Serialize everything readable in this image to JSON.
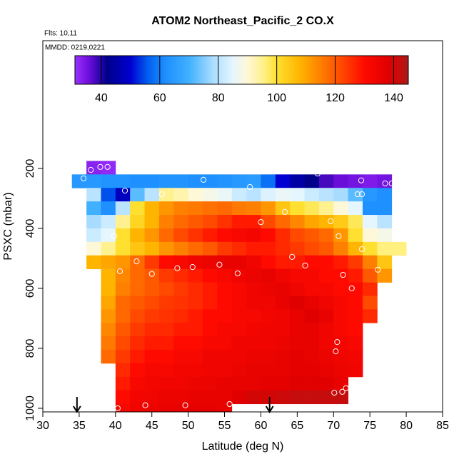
{
  "chart_data": {
    "type": "heatmap",
    "title": "ATOM2 Northeast_Pacific_2 CO.X",
    "subtitle": "Flts: 10,11",
    "annotation": "MMDD: 0219,0221",
    "xlabel": "Latitude (deg N)",
    "ylabel": "PSXC (mbar)",
    "xlim": [
      30,
      85
    ],
    "xticks": [
      30,
      35,
      40,
      45,
      50,
      55,
      60,
      65,
      70,
      75,
      80,
      85
    ],
    "ylim": [
      1012,
      -226
    ],
    "yticks": [
      200,
      400,
      600,
      800,
      1000
    ],
    "clim": [
      31,
      145
    ],
    "cticks": [
      40,
      60,
      80,
      100,
      120,
      140
    ],
    "colorscale": [
      [
        31,
        "#9b30ff"
      ],
      [
        36,
        "#6a0dd8"
      ],
      [
        42,
        "#00008b"
      ],
      [
        50,
        "#0000d0"
      ],
      [
        56,
        "#0060f0"
      ],
      [
        62,
        "#1e90ff"
      ],
      [
        70,
        "#40b0ff"
      ],
      [
        78,
        "#a8dcff"
      ],
      [
        85,
        "#e6f6ff"
      ],
      [
        90,
        "#fff8d8"
      ],
      [
        96,
        "#fff080"
      ],
      [
        100,
        "#ffe030"
      ],
      [
        108,
        "#ffb400"
      ],
      [
        116,
        "#ff7800"
      ],
      [
        124,
        "#ff3a00"
      ],
      [
        130,
        "#ff0a00"
      ],
      [
        138,
        "#e00000"
      ],
      [
        143,
        "#c01010"
      ],
      [
        145,
        "#a02020"
      ]
    ],
    "x": [
      34,
      36,
      38,
      40,
      42,
      44,
      46,
      48,
      50,
      52,
      54,
      56,
      58,
      60,
      62,
      64,
      66,
      68,
      70,
      72,
      74,
      76,
      78,
      80
    ],
    "y": [
      175,
      220,
      265,
      310,
      355,
      400,
      445,
      490,
      535,
      580,
      625,
      670,
      715,
      760,
      805,
      850,
      895,
      940,
      985,
      1012
    ],
    "values": [
      [
        null,
        33,
        32,
        null,
        null,
        null,
        null,
        null,
        null,
        null,
        null,
        null,
        null,
        null,
        null,
        null,
        null,
        null,
        null,
        null,
        null,
        null,
        null
      ],
      [
        64,
        64,
        63,
        63,
        62,
        62,
        63,
        63,
        62,
        62,
        63,
        64,
        65,
        58,
        50,
        45,
        42,
        38,
        36,
        35,
        34,
        35,
        null
      ],
      [
        null,
        80,
        55,
        48,
        72,
        80,
        95,
        93,
        90,
        88,
        86,
        82,
        80,
        84,
        86,
        85,
        82,
        80,
        78,
        72,
        64,
        62,
        null
      ],
      [
        null,
        70,
        62,
        80,
        100,
        108,
        112,
        115,
        116,
        117,
        118,
        116,
        115,
        112,
        105,
        100,
        98,
        95,
        90,
        85,
        62,
        62,
        null
      ],
      [
        null,
        78,
        82,
        95,
        102,
        108,
        115,
        118,
        120,
        122,
        125,
        128,
        128,
        122,
        118,
        114,
        110,
        108,
        104,
        98,
        85,
        80,
        null
      ],
      [
        null,
        82,
        85,
        100,
        108,
        112,
        118,
        122,
        125,
        128,
        130,
        132,
        133,
        130,
        126,
        122,
        120,
        118,
        112,
        100,
        90,
        88,
        null
      ],
      [
        null,
        90,
        95,
        100,
        105,
        108,
        112,
        115,
        118,
        120,
        124,
        126,
        128,
        128,
        126,
        124,
        122,
        120,
        115,
        108,
        100,
        96,
        96
      ],
      [
        null,
        108,
        110,
        112,
        118,
        124,
        130,
        132,
        134,
        135,
        136,
        136,
        134,
        130,
        128,
        128,
        130,
        130,
        128,
        124,
        115,
        105,
        null
      ],
      [
        null,
        null,
        108,
        114,
        118,
        120,
        124,
        126,
        128,
        130,
        132,
        134,
        135,
        136,
        134,
        132,
        132,
        130,
        130,
        128,
        120,
        112,
        null
      ],
      [
        null,
        null,
        108,
        115,
        118,
        120,
        122,
        124,
        126,
        128,
        130,
        132,
        134,
        135,
        136,
        134,
        132,
        132,
        130,
        130,
        126,
        null,
        null
      ],
      [
        null,
        null,
        110,
        118,
        120,
        122,
        124,
        125,
        126,
        128,
        130,
        132,
        134,
        134,
        136,
        138,
        136,
        134,
        132,
        130,
        122,
        null,
        null
      ],
      [
        null,
        null,
        112,
        118,
        122,
        124,
        125,
        126,
        128,
        130,
        130,
        132,
        132,
        133,
        134,
        136,
        138,
        136,
        132,
        130,
        126,
        null,
        null
      ],
      [
        null,
        null,
        114,
        120,
        124,
        126,
        126,
        128,
        128,
        130,
        132,
        132,
        133,
        134,
        134,
        136,
        136,
        134,
        132,
        130,
        null,
        null,
        null
      ],
      [
        null,
        null,
        116,
        122,
        126,
        128,
        128,
        130,
        130,
        132,
        132,
        134,
        134,
        134,
        135,
        136,
        136,
        134,
        133,
        132,
        null,
        null,
        null
      ],
      [
        null,
        null,
        118,
        124,
        128,
        130,
        130,
        132,
        132,
        134,
        134,
        134,
        135,
        135,
        136,
        137,
        136,
        135,
        134,
        133,
        null,
        null,
        null
      ],
      [
        null,
        null,
        null,
        126,
        130,
        132,
        132,
        133,
        133,
        134,
        134,
        135,
        136,
        136,
        136,
        137,
        137,
        136,
        135,
        134,
        null,
        null,
        null
      ],
      [
        null,
        null,
        null,
        128,
        132,
        133,
        134,
        134,
        135,
        135,
        136,
        136,
        136,
        137,
        137,
        138,
        138,
        138,
        136,
        null,
        null,
        null,
        null
      ],
      [
        null,
        null,
        null,
        130,
        133,
        134,
        135,
        135,
        136,
        136,
        136,
        138,
        140,
        140,
        141,
        142,
        142,
        142,
        142,
        null,
        null,
        null,
        null
      ],
      [
        null,
        null,
        null,
        132,
        134,
        135,
        136,
        136,
        137,
        137,
        136,
        null,
        null,
        null,
        null,
        null,
        null,
        null,
        null,
        null,
        null,
        null,
        null
      ]
    ],
    "points": {
      "x": [
        36.6,
        37.9,
        38.9,
        35.6,
        41.3,
        46.4,
        52.1,
        58.5,
        67.8,
        73.8,
        77.1,
        78.0,
        73.3,
        73.9,
        63.3,
        60.0,
        69.6,
        39.8,
        70.7,
        73.9,
        42.9,
        64.3,
        66.1,
        40.6,
        45.0,
        48.5,
        50.6,
        54.3,
        56.8,
        71.3,
        76.1,
        72.5,
        70.5,
        70.3,
        71.7,
        71.2,
        70.1,
        40.3,
        44.1,
        49.6,
        55.7
      ],
      "y": [
        205,
        195,
        195,
        233,
        274,
        286,
        238,
        262,
        217,
        240,
        250,
        250,
        286,
        286,
        345,
        379,
        376,
        426,
        426,
        469,
        510,
        495,
        524,
        543,
        552,
        533,
        529,
        521,
        550,
        555,
        538,
        600,
        779,
        810,
        933,
        945,
        948,
        1000,
        990,
        990,
        986
      ]
    },
    "arrows": [
      34.7,
      61.2
    ]
  }
}
